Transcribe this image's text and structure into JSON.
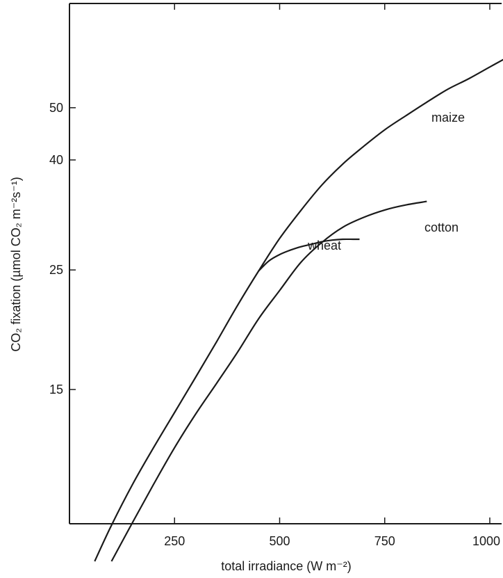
{
  "chart_data": {
    "type": "line",
    "xlabel": "total irradiance (W m⁻²)",
    "ylabel": "CO₂ fixation (µmol CO₂ m⁻²s⁻¹)",
    "xlim": [
      0,
      1050
    ],
    "ylim": [
      7.0,
      60
    ],
    "y_scale": "log",
    "x_ticks": [
      250,
      500,
      750,
      1000
    ],
    "x_tick_labels": [
      "250",
      "500",
      "750",
      "1000"
    ],
    "y_ticks": [
      15,
      25,
      40,
      50
    ],
    "y_tick_labels": [
      "15",
      "25",
      "40",
      "50"
    ],
    "grid": false,
    "legend": "none",
    "series": [
      {
        "name": "maize",
        "x": [
          60,
          100,
          150,
          200,
          250,
          300,
          350,
          400,
          450,
          500,
          550,
          600,
          650,
          700,
          750,
          800,
          850,
          900,
          950,
          1000,
          1040
        ],
        "y": [
          7.2,
          8.4,
          10.0,
          11.7,
          13.6,
          15.8,
          18.4,
          21.5,
          24.9,
          28.6,
          32.2,
          35.9,
          39.3,
          42.4,
          45.5,
          48.3,
          51.2,
          54.1,
          56.6,
          59.5,
          61.9
        ]
      },
      {
        "name": "wheat",
        "x": [
          450,
          475,
          500,
          525,
          550,
          575,
          600,
          625,
          650,
          675,
          690
        ],
        "y": [
          24.9,
          26.0,
          26.7,
          27.2,
          27.6,
          27.9,
          28.2,
          28.4,
          28.5,
          28.5,
          28.5
        ]
      },
      {
        "name": "cotton",
        "x": [
          100,
          150,
          200,
          250,
          300,
          350,
          400,
          450,
          500,
          550,
          600,
          650,
          700,
          750,
          800,
          850
        ],
        "y": [
          7.2,
          8.5,
          10.0,
          11.7,
          13.5,
          15.4,
          17.6,
          20.3,
          22.9,
          25.8,
          28.1,
          30.0,
          31.3,
          32.3,
          33.0,
          33.5
        ]
      }
    ]
  }
}
